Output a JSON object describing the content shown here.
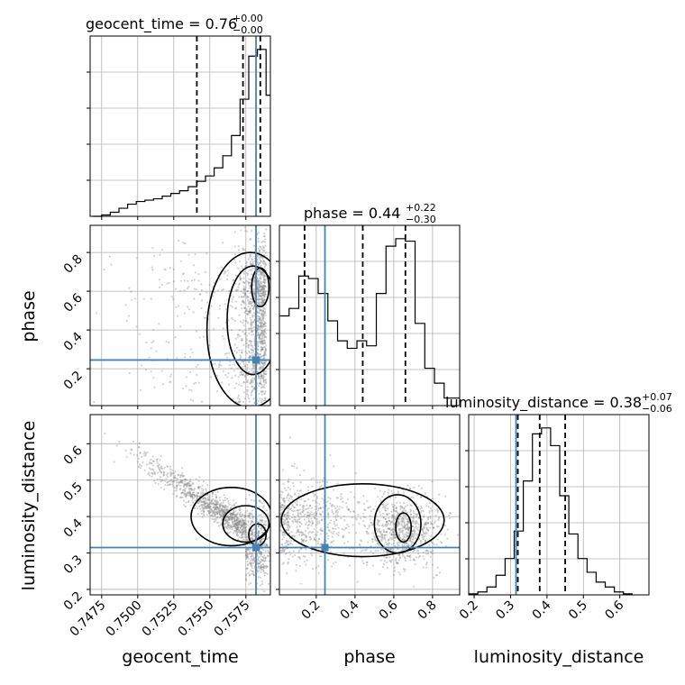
{
  "colors": {
    "truth": "#4682b4",
    "histogram": "#000000",
    "contour": "#000000",
    "scatter": "#808080",
    "grid": "#b0b0b0"
  },
  "chart_data": {
    "type": "corner",
    "parameters": [
      "geocent_time",
      "phase",
      "luminosity_distance"
    ],
    "titles": [
      {
        "parameter": "geocent_time",
        "prefix": "geocent_time = 0.76",
        "plus": "+0.00",
        "minus": "−0.00"
      },
      {
        "parameter": "phase",
        "prefix": "phase = 0.44",
        "plus": "+0.22",
        "minus": "−0.30"
      },
      {
        "parameter": "luminosity_distance",
        "prefix": "luminosity_distance = 0.38",
        "plus": "+0.07",
        "minus": "−0.06"
      }
    ],
    "axis_labels": {
      "x": [
        "geocent_time",
        "phase",
        "luminosity_distance"
      ],
      "y": [
        "phase",
        "luminosity_distance"
      ]
    },
    "ranges": {
      "geocent_time": [
        0.7467,
        0.7592
      ],
      "phase": [
        0.01,
        0.94
      ],
      "luminosity_distance": [
        0.185,
        0.68
      ]
    },
    "ticks": {
      "geocent_time": {
        "values": [
          0.7475,
          0.75,
          0.7525,
          0.755,
          0.7575
        ],
        "labels": [
          "0.7475",
          "0.7500",
          "0.7525",
          "0.7550",
          "0.7575"
        ]
      },
      "phase": {
        "values": [
          0.2,
          0.4,
          0.6,
          0.8
        ],
        "labels": [
          "0.2",
          "0.4",
          "0.6",
          "0.8"
        ]
      },
      "luminosity_distance": {
        "values": [
          0.2,
          0.3,
          0.4,
          0.5,
          0.6
        ],
        "labels": [
          "0.2",
          "0.3",
          "0.4",
          "0.5",
          "0.6"
        ]
      }
    },
    "truth": {
      "geocent_time": 0.7582,
      "phase": 0.245,
      "luminosity_distance": 0.315
    },
    "quantiles": {
      "geocent_time": [
        0.7541,
        0.7573,
        0.7585
      ],
      "phase": [
        0.14,
        0.44,
        0.66
      ],
      "luminosity_distance": [
        0.32,
        0.38,
        0.45
      ]
    },
    "histograms": {
      "geocent_time": {
        "edges": [
          0.7469,
          0.7475,
          0.7481,
          0.7487,
          0.7493,
          0.7499,
          0.7505,
          0.7511,
          0.7517,
          0.7523,
          0.7529,
          0.7535,
          0.7541,
          0.7547,
          0.7553,
          0.7559,
          0.7565,
          0.7571,
          0.7577,
          0.7583,
          0.7589,
          0.7592
        ],
        "counts": [
          0,
          1,
          3,
          6,
          9,
          11,
          12,
          13,
          15,
          17,
          19,
          22,
          26,
          30,
          36,
          45,
          60,
          87,
          119,
          124,
          90
        ]
      },
      "phase": {
        "edges": [
          0.01,
          0.06,
          0.11,
          0.16,
          0.21,
          0.26,
          0.31,
          0.36,
          0.41,
          0.46,
          0.51,
          0.56,
          0.61,
          0.66,
          0.71,
          0.76,
          0.81,
          0.86,
          0.91,
          0.94
        ],
        "counts": [
          36,
          39,
          52,
          51,
          45,
          34,
          26,
          23,
          26,
          24,
          45,
          64,
          67,
          66,
          33,
          15,
          9,
          3,
          3
        ]
      },
      "luminosity_distance": {
        "edges": [
          0.185,
          0.21,
          0.235,
          0.26,
          0.285,
          0.31,
          0.335,
          0.36,
          0.385,
          0.41,
          0.435,
          0.46,
          0.485,
          0.51,
          0.535,
          0.56,
          0.585,
          0.61,
          0.635
        ],
        "counts": [
          1,
          3,
          8,
          20,
          37,
          65,
          116,
          164,
          170,
          152,
          101,
          62,
          37,
          23,
          13,
          8,
          3,
          1
        ]
      }
    },
    "scatter_model": {
      "geocent_time_phase": "phase spread over 0.0-0.92, geocent_time concentrated near 0.7575-0.759 with long tail to 0.7477",
      "geocent_time_luminosity_distance": "anti-correlated band from (0.7478, 0.62) to (0.7588, 0.33)",
      "phase_luminosity_distance": "two clusters near phase 0.15 and 0.65 at distance 0.32-0.45"
    }
  }
}
